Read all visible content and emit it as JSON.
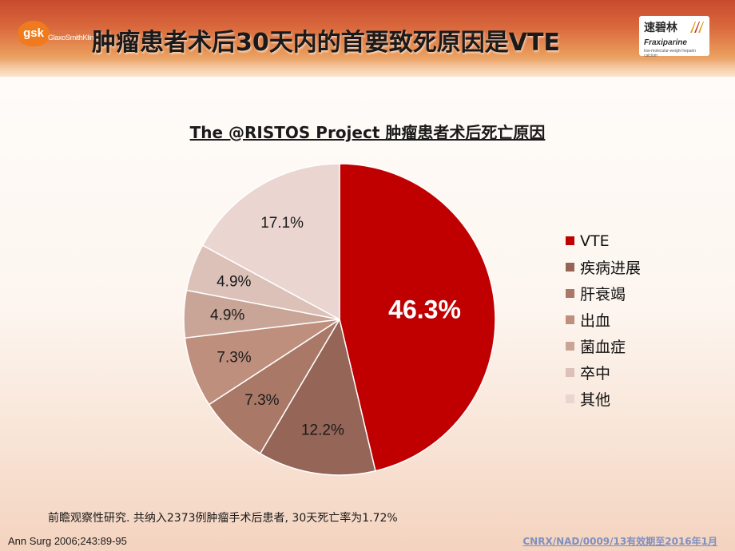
{
  "header": {
    "title": "肿瘤患者术后30天内的首要致死原因是VTE",
    "logo_left": "gsk",
    "logo_left_text": "GlaxoSmithKline",
    "brand_cn": "速碧林",
    "brand_en": "Fraxiparine",
    "brand_sub": "low-molecular-weight heparin calcium"
  },
  "chart_data": {
    "type": "pie",
    "title": "The  @RISTOS  Project  肿瘤患者术后死亡原因",
    "categories": [
      "VTE",
      "疾病进展",
      "肝衰竭",
      "出血",
      "菌血症",
      "卒中",
      "其他"
    ],
    "values": [
      46.3,
      12.2,
      7.3,
      7.3,
      4.9,
      4.9,
      17.1
    ],
    "labels": [
      "46.3%",
      "12.2%",
      "7.3%",
      "7.3%",
      "4.9%",
      "4.9%",
      "17.1%"
    ],
    "colors": [
      "#c00000",
      "#956558",
      "#a97867",
      "#bf8f7e",
      "#c9a598",
      "#dcc1b9",
      "#ead5d0"
    ],
    "legend_position": "right"
  },
  "footnote": "前瞻观察性研究. 共纳入2373例肿瘤手术后患者, 30天死亡率为1.72%",
  "citation": "Ann Surg 2006;243:89-95",
  "code": "CNRX/NAD/0009/13有效期至2016年1月"
}
